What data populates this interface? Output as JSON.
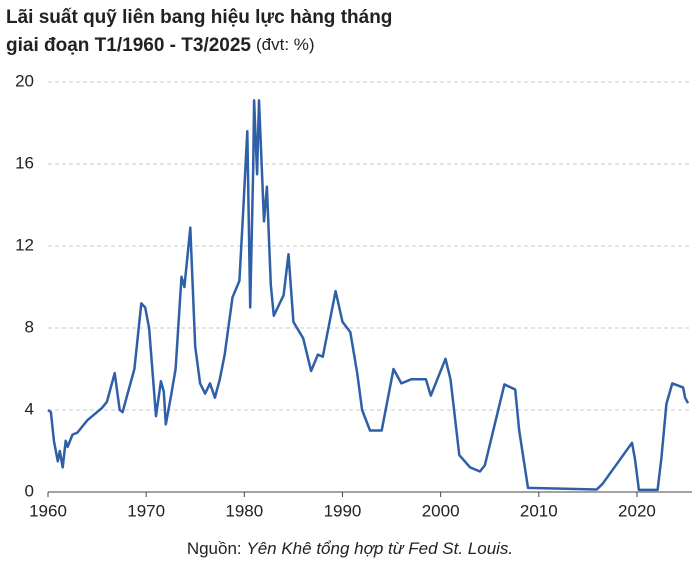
{
  "chart_data": {
    "type": "line",
    "title": [
      "Lãi suất quỹ liên bang hiệu lực hàng tháng",
      "giai đoạn T1/1960 - T3/2025"
    ],
    "unit_note": "(đvt: %)",
    "source": [
      "Nguồn: ",
      "Yên Khê tổng hợp từ Fed St. Louis."
    ],
    "xlim": [
      1960,
      2025.2
    ],
    "xticks": [
      1960,
      1970,
      1980,
      1990,
      2000,
      2010,
      2020
    ],
    "ylim": [
      0,
      20
    ],
    "yticks": [
      0,
      4,
      8,
      12,
      16,
      20
    ],
    "grid": true,
    "series": [
      {
        "color": "#2f5fa7",
        "x": [
          1960,
          1960.3,
          1960.6,
          1961,
          1961.2,
          1961.5,
          1961.8,
          1962,
          1962.5,
          1963,
          1963.5,
          1964,
          1965,
          1965.5,
          1966,
          1966.8,
          1967.3,
          1967.6,
          1968,
          1968.8,
          1969.5,
          1969.9,
          1970.3,
          1971,
          1971.5,
          1971.8,
          1972,
          1972.5,
          1973,
          1973.6,
          1973.9,
          1974.5,
          1975,
          1975.5,
          1976,
          1976.5,
          1977,
          1977.5,
          1978,
          1978.8,
          1979.5,
          1979.9,
          1980.3,
          1980.6,
          1980.9,
          1981,
          1981.3,
          1981.5,
          1982,
          1982.3,
          1982.7,
          1983,
          1984,
          1984.5,
          1985,
          1986,
          1986.8,
          1987.5,
          1988,
          1989.3,
          1990,
          1990.8,
          1991.5,
          1992,
          1992.8,
          1993.5,
          1994,
          1995.2,
          1996,
          1997,
          1998.5,
          1999,
          2000.5,
          2001,
          2001.9,
          2003,
          2004,
          2004.5,
          2006.5,
          2007.6,
          2008,
          2008.9,
          2015.9,
          2016.5,
          2018,
          2019.5,
          2019.8,
          2020.2,
          2022.1,
          2022.5,
          2023,
          2023.6,
          2024.7,
          2024.9,
          2025.2
        ],
        "values": [
          4.0,
          3.9,
          2.5,
          1.5,
          2.0,
          1.2,
          2.5,
          2.2,
          2.8,
          2.9,
          3.2,
          3.5,
          3.9,
          4.1,
          4.4,
          5.8,
          4.0,
          3.9,
          4.6,
          6.0,
          9.2,
          9.0,
          8.0,
          3.7,
          5.4,
          4.9,
          3.3,
          4.6,
          6.0,
          10.5,
          10.0,
          12.9,
          7.1,
          5.3,
          4.8,
          5.3,
          4.6,
          5.5,
          6.7,
          9.5,
          10.3,
          13.8,
          17.6,
          9.0,
          15.8,
          19.1,
          15.5,
          19.1,
          13.2,
          14.9,
          10.1,
          8.6,
          9.6,
          11.6,
          8.3,
          7.5,
          5.9,
          6.7,
          6.6,
          9.8,
          8.3,
          7.8,
          5.8,
          4.0,
          3.0,
          3.0,
          3.0,
          6.0,
          5.3,
          5.5,
          5.5,
          4.7,
          6.5,
          5.5,
          1.8,
          1.2,
          1.0,
          1.3,
          5.25,
          5.0,
          3.0,
          0.2,
          0.12,
          0.4,
          1.4,
          2.4,
          1.6,
          0.1,
          0.1,
          1.7,
          4.3,
          5.3,
          5.1,
          4.6,
          4.33
        ]
      }
    ]
  }
}
